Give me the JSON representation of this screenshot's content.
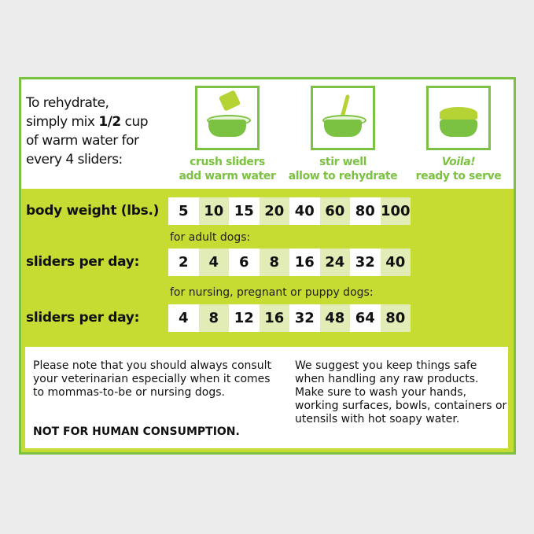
{
  "intro": {
    "line1": "To rehydrate,",
    "line2a": "simply mix ",
    "line2b": "1/2",
    "line2c": " cup",
    "line3": "of warm water for",
    "line4": "every 4 sliders:"
  },
  "steps": [
    {
      "line1": "crush sliders",
      "line2": "add warm water",
      "icon": "pitcher-bowl-icon"
    },
    {
      "line1": "stir well",
      "line2": "allow to rehydrate",
      "icon": "spoon-bowl-icon"
    },
    {
      "line1": "Voila!",
      "line2": "ready to serve",
      "icon": "full-bowl-icon"
    }
  ],
  "table": {
    "body_weight_label": "body weight (lbs.)",
    "body_weight": [
      "5",
      "10",
      "15",
      "20",
      "40",
      "60",
      "80",
      "100"
    ],
    "adult_caption": "for adult dogs:",
    "adult_label": "sliders per day:",
    "adult": [
      "2",
      "4",
      "6",
      "8",
      "16",
      "24",
      "32",
      "40"
    ],
    "puppy_caption": "for nursing, pregnant or puppy dogs:",
    "puppy_label": "sliders per day:",
    "puppy": [
      "4",
      "8",
      "12",
      "16",
      "32",
      "48",
      "64",
      "80"
    ]
  },
  "notes": {
    "left": "Please note that you should always consult your veterinarian especially when it comes to mommas-to-be or nursing dogs.",
    "warning": "NOT FOR HUMAN CONSUMPTION.",
    "right": "We suggest you keep things safe when handling any raw products. Make sure to wash your hands, working surfaces, bowls, containers or utensils with hot soapy water."
  },
  "colors": {
    "green": "#7cc242",
    "lime": "#c6dc32"
  }
}
